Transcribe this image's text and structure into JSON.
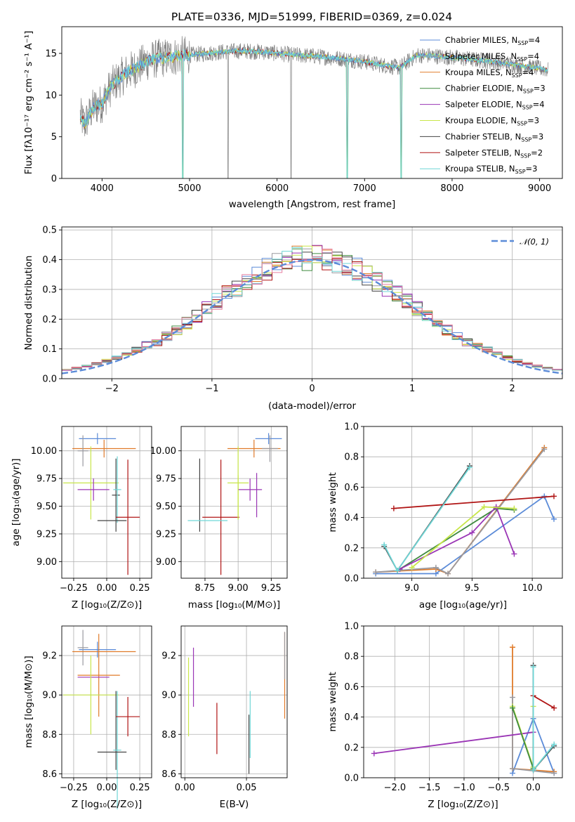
{
  "title": "PLATE=0336, MJD=51999, FIBERID=0369, z=0.024",
  "colors": {
    "Chabrier MILES": "#5b8bd8",
    "Salpeter MILES": "#9a9aa0",
    "Kroupa MILES": "#e07b2a",
    "Chabrier ELODIE": "#3f8a3f",
    "Salpeter ELODIE": "#9a35b5",
    "Kroupa ELODIE": "#c8e64a",
    "Chabrier STELIB": "#444444",
    "Salpeter STELIB": "#b01414",
    "Kroupa STELIB": "#6fd6d6",
    "data": "#7f7f7f",
    "gaussian": "#5b8bd8"
  },
  "chart_data": [
    {
      "type": "line",
      "xlabel": "wavelength [Angstrom, rest frame]",
      "ylabel": "Flux [fλ10⁻¹⁷ erg cm⁻² s⁻¹ A⁻¹]",
      "xlim": [
        3540,
        9260
      ],
      "ylim": [
        0,
        18.2
      ],
      "xticks": [
        "4000",
        "5000",
        "6000",
        "7000",
        "8000",
        "9000"
      ],
      "yticks": [
        "0",
        "5",
        "10",
        "15"
      ],
      "grid": false,
      "legend_position": "upper-right",
      "legend": [
        {
          "label": "Chabrier MILES, N",
          "sub": "SSP",
          "suffix": "=4",
          "series": "Chabrier MILES"
        },
        {
          "label": "Salpeter MILES, N",
          "sub": "SSP",
          "suffix": "=4",
          "series": "Salpeter MILES"
        },
        {
          "label": "Kroupa MILES, N",
          "sub": "SSP",
          "suffix": "=4",
          "series": "Kroupa MILES"
        },
        {
          "label": "Chabrier ELODIE, N",
          "sub": "SSP",
          "suffix": "=3",
          "series": "Chabrier ELODIE"
        },
        {
          "label": "Salpeter ELODIE, N",
          "sub": "SSP",
          "suffix": "=4",
          "series": "Salpeter ELODIE"
        },
        {
          "label": "Kroupa ELODIE, N",
          "sub": "SSP",
          "suffix": "=3",
          "series": "Kroupa ELODIE"
        },
        {
          "label": "Chabrier STELIB, N",
          "sub": "SSP",
          "suffix": "=3",
          "series": "Chabrier STELIB"
        },
        {
          "label": "Salpeter STELIB, N",
          "sub": "SSP",
          "suffix": "=2",
          "series": "Salpeter STELIB"
        },
        {
          "label": "Kroupa STELIB, N",
          "sub": "SSP",
          "suffix": "=3",
          "series": "Kroupa STELIB"
        }
      ],
      "continuum": {
        "x": [
          3750,
          3800,
          3900,
          4000,
          4100,
          4200,
          4300,
          4400,
          4500,
          4600,
          4800,
          5000,
          5200,
          5400,
          5600,
          5800,
          6000,
          6200,
          6400,
          6600,
          6800,
          7000,
          7200,
          7400,
          7600,
          7800,
          8000,
          8200,
          8400,
          8600,
          8800,
          9000,
          9100
        ],
        "y": [
          7.5,
          6.5,
          8.5,
          9.0,
          11.0,
          12.0,
          12.8,
          13.3,
          14.0,
          14.3,
          14.6,
          14.8,
          15.0,
          15.2,
          15.3,
          15.2,
          15.0,
          14.8,
          14.7,
          14.5,
          14.3,
          14.0,
          13.6,
          13.3,
          14.8,
          14.7,
          14.5,
          14.3,
          14.1,
          13.8,
          13.5,
          13.2,
          13.0
        ]
      },
      "data_spikes_down": [
        4925,
        5440,
        6160,
        6800,
        7420
      ],
      "model_spikes_down": [
        4920,
        6800,
        7420
      ]
    },
    {
      "type": "histogram",
      "xlabel": "(data-model)/error",
      "ylabel": "Normed distribution",
      "xlim": [
        -2.5,
        2.5
      ],
      "ylim": [
        0,
        0.51
      ],
      "xticks": [
        "−2",
        "−1",
        "0",
        "1",
        "2"
      ],
      "yticks": [
        "0.0",
        "0.1",
        "0.2",
        "0.3",
        "0.4",
        "0.5"
      ],
      "grid": true,
      "legend_position": "upper-right",
      "legend": [
        {
          "label": "𝒩(0, 1)",
          "series": "gaussian"
        }
      ],
      "bin_width": 0.1
    },
    {
      "type": "errorbar",
      "xlabel": "Z [log₁₀(Z/Z⊙)]",
      "ylabel": "age  [log₁₀(age/yr)]",
      "xlim": [
        -0.34,
        0.34
      ],
      "ylim": [
        8.85,
        10.22
      ],
      "xticks": [
        "−0.25",
        "0.00",
        "0.25"
      ],
      "xtick_values": [
        -0.25,
        0,
        0.25
      ],
      "yticks": [
        "9.00",
        "9.25",
        "9.50",
        "9.75",
        "10.00"
      ],
      "ytick_values": [
        9.0,
        9.25,
        9.5,
        9.75,
        10.0
      ],
      "grid": true,
      "points": [
        {
          "series": "Chabrier MILES",
          "x": -0.07,
          "xerr": 0.14,
          "y": 10.11,
          "yerr": 0.05
        },
        {
          "series": "Kroupa MILES",
          "x": -0.02,
          "xerr": 0.24,
          "y": 10.02,
          "yerr": 0.08
        },
        {
          "series": "Salpeter MILES",
          "x": -0.18,
          "xerr": 0.04,
          "y": 10.0,
          "yerr": 0.14
        },
        {
          "series": "Kroupa ELODIE",
          "x": -0.12,
          "xerr": 0.21,
          "y": 9.71,
          "yerr": 0.33
        },
        {
          "series": "Salpeter ELODIE",
          "x": -0.1,
          "xerr": 0.12,
          "y": 9.65,
          "yerr": 0.1
        },
        {
          "series": "Chabrier STELIB",
          "x": 0.07,
          "xerr": 0.03,
          "y": 9.6,
          "yerr": 0.33
        },
        {
          "series": "Kroupa STELIB",
          "x": 0.08,
          "xerr": 0.03,
          "y": 9.65,
          "yerr": 0.3
        },
        {
          "series": "Salpeter STELIB",
          "x": 0.16,
          "xerr": 0.09,
          "y": 9.4,
          "yerr": 0.52
        },
        {
          "series": "Chabrier STELIB",
          "x": 0.04,
          "xerr": 0.11,
          "y": 9.37,
          "yerr": 0.0
        }
      ]
    },
    {
      "type": "errorbar",
      "xlabel": "mass [log₁₀(M/M⊙)]",
      "ylabel": "",
      "xlim": [
        8.57,
        9.37
      ],
      "ylim": [
        8.85,
        10.22
      ],
      "xticks": [
        "8.75",
        "9.00",
        "9.25"
      ],
      "xtick_values": [
        8.75,
        9.0,
        9.25
      ],
      "yticks": [
        "9.00",
        "9.25",
        "9.50",
        "9.75",
        "10.00"
      ],
      "ytick_values": [
        9.0,
        9.25,
        9.5,
        9.75,
        10.0
      ],
      "grid": true,
      "points": [
        {
          "series": "Chabrier MILES",
          "x": 9.23,
          "xerr": 0.1,
          "y": 10.11,
          "yerr": 0.05
        },
        {
          "series": "Kroupa MILES",
          "x": 9.12,
          "xerr": 0.2,
          "y": 10.02,
          "yerr": 0.08
        },
        {
          "series": "Salpeter MILES",
          "x": 9.24,
          "xerr": 0.06,
          "y": 10.02,
          "yerr": 0.12
        },
        {
          "series": "Salpeter STELIB",
          "x": 8.87,
          "xerr": 0.14,
          "y": 9.4,
          "yerr": 0.52
        },
        {
          "series": "Kroupa ELODIE",
          "x": 9.0,
          "xerr": 0.08,
          "y": 9.71,
          "yerr": 0.33
        },
        {
          "series": "Salpeter ELODIE",
          "x": 9.09,
          "xerr": 0.09,
          "y": 9.65,
          "yerr": 0.1
        },
        {
          "series": "Chabrier STELIB",
          "x": 8.71,
          "xerr": 0.0,
          "y": 9.6,
          "yerr": 0.33
        },
        {
          "series": "Kroupa STELIB",
          "x": 8.77,
          "xerr": 0.15,
          "y": 9.37,
          "yerr": 0.0
        },
        {
          "series": "Kroupa ELODIE",
          "x": 9.0,
          "xerr": 0.0,
          "y": 9.58,
          "yerr": 0.2
        },
        {
          "series": "Salpeter ELODIE",
          "x": 9.14,
          "xerr": 0.0,
          "y": 9.6,
          "yerr": 0.2
        }
      ]
    },
    {
      "type": "line",
      "xlabel": "age  [log₁₀(age/yr)]",
      "ylabel": "mass weight",
      "xlim": [
        8.6,
        10.25
      ],
      "ylim": [
        0,
        1.0
      ],
      "xticks": [
        "9.0",
        "9.5",
        "10.0"
      ],
      "xtick_values": [
        9.0,
        9.5,
        10.0
      ],
      "yticks": [
        "0.0",
        "0.2",
        "0.4",
        "0.6",
        "0.8",
        "1.0"
      ],
      "ytick_values": [
        0,
        0.2,
        0.4,
        0.6,
        0.8,
        1.0
      ],
      "grid": true,
      "series": [
        {
          "name": "Chabrier MILES",
          "x": [
            8.7,
            9.2,
            10.1,
            10.18
          ],
          "y": [
            0.03,
            0.03,
            0.54,
            0.39
          ]
        },
        {
          "name": "Kroupa MILES",
          "x": [
            8.7,
            9.2,
            9.3,
            10.1
          ],
          "y": [
            0.04,
            0.06,
            0.03,
            0.86
          ]
        },
        {
          "name": "Salpeter MILES",
          "x": [
            8.7,
            9.2,
            9.3,
            10.1
          ],
          "y": [
            0.04,
            0.07,
            0.03,
            0.85
          ]
        },
        {
          "name": "Chabrier ELODIE",
          "x": [
            8.9,
            9.7,
            9.85
          ],
          "y": [
            0.06,
            0.46,
            0.45
          ]
        },
        {
          "name": "Salpeter ELODIE",
          "x": [
            8.9,
            9.5,
            9.7,
            9.85
          ],
          "y": [
            0.06,
            0.3,
            0.47,
            0.16
          ]
        },
        {
          "name": "Kroupa ELODIE",
          "x": [
            9.0,
            9.6,
            9.85
          ],
          "y": [
            0.07,
            0.47,
            0.46
          ]
        },
        {
          "name": "Chabrier STELIB",
          "x": [
            8.77,
            8.88,
            9.48
          ],
          "y": [
            0.21,
            0.05,
            0.74
          ]
        },
        {
          "name": "Salpeter STELIB",
          "x": [
            8.85,
            10.18
          ],
          "y": [
            0.46,
            0.54
          ]
        },
        {
          "name": "Kroupa STELIB",
          "x": [
            8.77,
            8.88,
            9.48
          ],
          "y": [
            0.22,
            0.05,
            0.73
          ]
        }
      ]
    },
    {
      "type": "errorbar",
      "xlabel": "Z [log₁₀(Z/Z⊙)]",
      "ylabel": "mass [log₁₀(M/M⊙)]",
      "xlim": [
        -0.34,
        0.34
      ],
      "ylim": [
        8.58,
        9.35
      ],
      "xticks": [
        "−0.25",
        "0.00",
        "0.25"
      ],
      "xtick_values": [
        -0.25,
        0,
        0.25
      ],
      "yticks": [
        "8.6",
        "8.8",
        "9.0",
        "9.2"
      ],
      "ytick_values": [
        8.6,
        8.8,
        9.0,
        9.2
      ],
      "grid": true,
      "points": [
        {
          "series": "Chabrier MILES",
          "x": -0.07,
          "xerr": 0.14,
          "y": 9.23,
          "yerr": 0.04
        },
        {
          "series": "Salpeter MILES",
          "x": -0.18,
          "xerr": 0.04,
          "y": 9.24,
          "yerr": 0.09
        },
        {
          "series": "Kroupa MILES",
          "x": -0.02,
          "xerr": 0.24,
          "y": 9.22,
          "yerr": 0.0
        },
        {
          "series": "Kroupa MILES",
          "x": -0.06,
          "xerr": 0.16,
          "y": 9.1,
          "yerr": 0.21
        },
        {
          "series": "Salpeter ELODIE",
          "x": -0.1,
          "xerr": 0.12,
          "y": 9.09,
          "yerr": 0.0
        },
        {
          "series": "Kroupa ELODIE",
          "x": -0.12,
          "xerr": 0.21,
          "y": 9.0,
          "yerr": 0.2
        },
        {
          "series": "Chabrier STELIB",
          "x": 0.07,
          "xerr": 0.0,
          "y": 8.82,
          "yerr": 0.2
        },
        {
          "series": "Kroupa STELIB",
          "x": 0.08,
          "xerr": 0.03,
          "y": 8.72,
          "yerr": 0.3
        },
        {
          "series": "Salpeter STELIB",
          "x": 0.16,
          "xerr": 0.09,
          "y": 8.89,
          "yerr": 0.1
        },
        {
          "series": "Chabrier STELIB",
          "x": 0.04,
          "xerr": 0.11,
          "y": 8.71,
          "yerr": 0.0
        }
      ]
    },
    {
      "type": "errorbar",
      "xlabel": "E(B-V)",
      "ylabel": "",
      "xlim": [
        -0.003,
        0.083
      ],
      "ylim": [
        8.58,
        9.35
      ],
      "xticks": [
        "0.00",
        "0.05"
      ],
      "xtick_values": [
        0,
        0.05
      ],
      "yticks": [
        "8.6",
        "8.8",
        "9.0",
        "9.2"
      ],
      "ytick_values": [
        8.6,
        8.8,
        9.0,
        9.2
      ],
      "grid": true,
      "points": [
        {
          "series": "Kroupa ELODIE",
          "x": 0.003,
          "xerr": 0,
          "y": 8.99,
          "yerr": 0.2
        },
        {
          "series": "Salpeter ELODIE",
          "x": 0.007,
          "xerr": 0,
          "y": 9.09,
          "yerr": 0.15
        },
        {
          "series": "Salpeter STELIB",
          "x": 0.026,
          "xerr": 0,
          "y": 8.83,
          "yerr": 0.13
        },
        {
          "series": "Chabrier STELIB",
          "x": 0.052,
          "xerr": 0,
          "y": 8.75,
          "yerr": 0.15
        },
        {
          "series": "Kroupa STELIB",
          "x": 0.053,
          "xerr": 0,
          "y": 8.85,
          "yerr": 0.17
        },
        {
          "series": "Kroupa MILES",
          "x": 0.081,
          "xerr": 0,
          "y": 9.1,
          "yerr": 0.22
        },
        {
          "series": "Salpeter MILES",
          "x": 0.081,
          "xerr": 0,
          "y": 9.2,
          "yerr": 0.12
        }
      ]
    },
    {
      "type": "line",
      "xlabel": "Z [log₁₀(Z/Z⊙)]",
      "ylabel": "mass weight",
      "xlim": [
        -2.45,
        0.42
      ],
      "ylim": [
        0,
        1.0
      ],
      "xticks": [
        "−2.0",
        "−1.5",
        "−1.0",
        "−0.5",
        "0.0"
      ],
      "xtick_values": [
        -2.0,
        -1.5,
        -1.0,
        -0.5,
        0.0
      ],
      "yticks": [
        "0.0",
        "0.2",
        "0.4",
        "0.6",
        "0.8",
        "1.0"
      ],
      "ytick_values": [
        0,
        0.2,
        0.4,
        0.6,
        0.8,
        1.0
      ],
      "grid": true,
      "series": [
        {
          "name": "Chabrier MILES",
          "x": [
            -0.3,
            0.0,
            0.3
          ],
          "y": [
            0.03,
            0.39,
            0.03
          ]
        },
        {
          "name": "Kroupa MILES",
          "x": [
            -0.3,
            -0.3,
            0.3
          ],
          "y": [
            0.86,
            0.06,
            0.04
          ]
        },
        {
          "name": "Salpeter MILES",
          "x": [
            -0.3,
            -0.3,
            0.3
          ],
          "y": [
            0.53,
            0.06,
            0.03
          ]
        },
        {
          "name": "Salpeter ELODIE",
          "x": [
            -2.3,
            0.0
          ],
          "y": [
            0.16,
            0.3
          ]
        },
        {
          "name": "Kroupa ELODIE",
          "x": [
            -0.3,
            0.0,
            0.0
          ],
          "y": [
            0.47,
            0.07,
            0.47
          ]
        },
        {
          "name": "Chabrier ELODIE",
          "x": [
            -0.3,
            0.0
          ],
          "y": [
            0.46,
            0.06
          ]
        },
        {
          "name": "Chabrier STELIB",
          "x": [
            0.0,
            0.0,
            0.3
          ],
          "y": [
            0.74,
            0.05,
            0.21
          ]
        },
        {
          "name": "Salpeter STELIB",
          "x": [
            0.0,
            0.3
          ],
          "y": [
            0.54,
            0.46
          ]
        },
        {
          "name": "Kroupa STELIB",
          "x": [
            0.0,
            0.0,
            0.3
          ],
          "y": [
            0.73,
            0.05,
            0.22
          ]
        }
      ]
    }
  ]
}
